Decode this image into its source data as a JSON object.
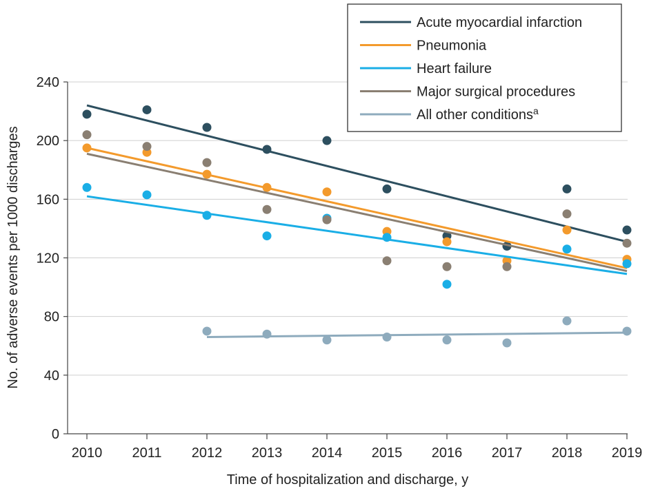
{
  "chart_data": {
    "type": "scatter",
    "title": "",
    "xlabel": "Time of hospitalization and discharge, y",
    "ylabel": "No. of adverse events per 1000 discharges",
    "x": [
      2010,
      2011,
      2012,
      2013,
      2014,
      2015,
      2016,
      2017,
      2018,
      2019
    ],
    "xlim": [
      2010,
      2019
    ],
    "ylim": [
      0,
      240
    ],
    "yticks": [
      0,
      40,
      80,
      120,
      160,
      200,
      240
    ],
    "grid": "horizontal",
    "legend_position": "top-right",
    "series": [
      {
        "name": "Acute myocardial infarction",
        "color": "#2d4f5f",
        "values": [
          218,
          221,
          209,
          194,
          200,
          167,
          135,
          128,
          167,
          139
        ],
        "trend": [
          224,
          131
        ]
      },
      {
        "name": "Pneumonia",
        "color": "#f39a2c",
        "values": [
          195,
          192,
          177,
          168,
          165,
          138,
          131,
          118,
          139,
          119
        ],
        "trend": [
          195,
          113
        ]
      },
      {
        "name": "Heart failure",
        "color": "#1aaee6",
        "values": [
          168,
          163,
          149,
          135,
          147,
          134,
          102,
          null,
          126,
          116
        ],
        "trend": [
          162,
          109
        ]
      },
      {
        "name": "Major surgical procedures",
        "color": "#8a7f72",
        "values": [
          204,
          196,
          185,
          153,
          146,
          118,
          114,
          114,
          150,
          130
        ],
        "trend": [
          191,
          111
        ]
      },
      {
        "name": "All other conditions",
        "name_sup": "a",
        "color": "#8eabbd",
        "values": [
          null,
          null,
          70,
          68,
          64,
          66,
          64,
          62,
          77,
          70
        ],
        "trend_start_year": 2012,
        "trend": [
          66,
          69
        ]
      }
    ]
  }
}
